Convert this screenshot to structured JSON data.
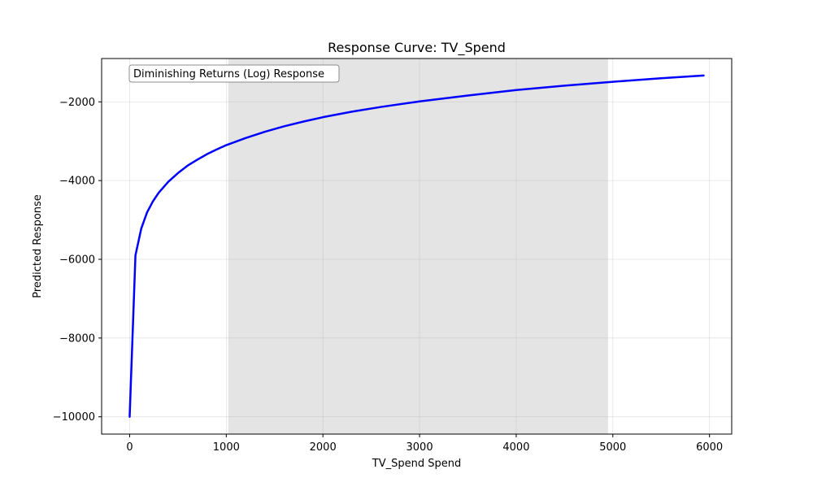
{
  "chart_data": {
    "type": "line",
    "title": "Response Curve: TV_Spend",
    "xlabel": "TV_Spend Spend",
    "ylabel": "Predicted Response",
    "xlim": [
      -290,
      6230
    ],
    "ylim": [
      -10440,
      -900
    ],
    "x_ticks": [
      0,
      1000,
      2000,
      3000,
      4000,
      5000,
      6000
    ],
    "y_ticks": [
      -10000,
      -8000,
      -6000,
      -4000,
      -2000
    ],
    "x_tick_labels": [
      "0",
      "1000",
      "2000",
      "3000",
      "4000",
      "5000",
      "6000"
    ],
    "y_tick_labels": [
      "−10000",
      "−8000",
      "−6000",
      "−4000",
      "−2000"
    ],
    "grid": true,
    "shaded_region": {
      "x": [
        1020,
        4950
      ],
      "color": "#e4e4e4"
    },
    "annotation": "Diminishing Returns (Log) Response",
    "series": [
      {
        "color": "#0000ff",
        "points": [
          [
            0,
            -10000
          ],
          [
            60,
            -5900
          ],
          [
            120,
            -5220
          ],
          [
            180,
            -4810
          ],
          [
            240,
            -4530
          ],
          [
            300,
            -4310
          ],
          [
            400,
            -4030
          ],
          [
            500,
            -3810
          ],
          [
            600,
            -3620
          ],
          [
            700,
            -3470
          ],
          [
            800,
            -3330
          ],
          [
            900,
            -3210
          ],
          [
            1000,
            -3100
          ],
          [
            1200,
            -2920
          ],
          [
            1400,
            -2760
          ],
          [
            1600,
            -2620
          ],
          [
            1800,
            -2500
          ],
          [
            2000,
            -2390
          ],
          [
            2300,
            -2250
          ],
          [
            2600,
            -2130
          ],
          [
            3000,
            -1990
          ],
          [
            3500,
            -1840
          ],
          [
            4000,
            -1700
          ],
          [
            4500,
            -1590
          ],
          [
            5000,
            -1490
          ],
          [
            5500,
            -1400
          ],
          [
            5940,
            -1330
          ]
        ]
      }
    ]
  }
}
